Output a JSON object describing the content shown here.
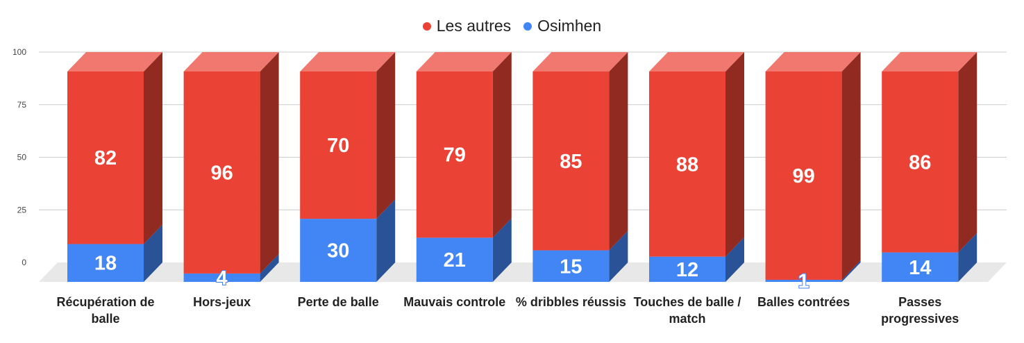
{
  "chart_data": {
    "type": "bar",
    "stacked": true,
    "three_d": true,
    "categories": [
      "Récupération de balle",
      "Hors-jeux",
      "Perte de balle",
      "Mauvais controle",
      "% dribbles réussis",
      "Touches de balle / match",
      "Balles contrées",
      "Passes progressives"
    ],
    "series": [
      {
        "name": "Osimhen",
        "color": "#4285f4",
        "values": [
          18,
          4,
          30,
          21,
          15,
          12,
          1,
          14
        ]
      },
      {
        "name": "Les autres",
        "color": "#ea4335",
        "values": [
          82,
          96,
          70,
          79,
          85,
          88,
          99,
          86
        ]
      }
    ],
    "legend_order": [
      "Les autres",
      "Osimhen"
    ],
    "legend": {
      "position": "top"
    },
    "yticks": [
      "0",
      "25",
      "50",
      "75",
      "100"
    ],
    "ylim": [
      0,
      100
    ],
    "grid": true
  }
}
